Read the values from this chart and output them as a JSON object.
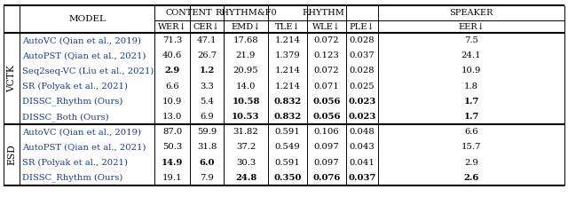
{
  "sections": [
    {
      "label": "VCTK",
      "rows": [
        [
          "AutoVC (Qian et al., 2019)",
          "71.3",
          "47.1",
          "17.68",
          "1.214",
          "0.072",
          "0.028",
          "7.5"
        ],
        [
          "AutoPST (Qian et al., 2021)",
          "40.6",
          "26.7",
          "21.9",
          "1.379",
          "0.123",
          "0.037",
          "24.1"
        ],
        [
          "Seq2seq-VC (Liu et al., 2021)",
          "2.9",
          "1.2",
          "20.95",
          "1.214",
          "0.072",
          "0.028",
          "10.9"
        ],
        [
          "SR (Polyak et al., 2021)",
          "6.6",
          "3.3",
          "14.0",
          "1.214",
          "0.071",
          "0.025",
          "1.8"
        ],
        [
          "DISSC_Rhythm (Ours)",
          "10.9",
          "5.4",
          "10.58",
          "0.832",
          "0.056",
          "0.023",
          "1.7"
        ],
        [
          "DISSC_Both (Ours)",
          "13.0",
          "6.9",
          "10.53",
          "0.832",
          "0.056",
          "0.023",
          "1.7"
        ]
      ],
      "bold": [
        [
          false,
          false,
          false,
          false,
          false,
          false,
          false
        ],
        [
          false,
          false,
          false,
          false,
          false,
          false,
          false
        ],
        [
          true,
          true,
          false,
          false,
          false,
          false,
          false
        ],
        [
          false,
          false,
          false,
          false,
          false,
          false,
          false
        ],
        [
          false,
          false,
          true,
          true,
          true,
          true,
          true
        ],
        [
          false,
          false,
          true,
          true,
          true,
          true,
          true
        ]
      ]
    },
    {
      "label": "ESD",
      "rows": [
        [
          "AutoVC (Qian et al., 2019)",
          "87.0",
          "59.9",
          "31.82",
          "0.591",
          "0.106",
          "0.048",
          "6.6"
        ],
        [
          "AutoPST (Qian et al., 2021)",
          "50.3",
          "31.8",
          "37.2",
          "0.549",
          "0.097",
          "0.043",
          "15.7"
        ],
        [
          "SR (Polyak et al., 2021)",
          "14.9",
          "6.0",
          "30.3",
          "0.591",
          "0.097",
          "0.041",
          "2.9"
        ],
        [
          "DISSC_Rhythm (Ours)",
          "19.1",
          "7.9",
          "24.8",
          "0.350",
          "0.076",
          "0.037",
          "2.6"
        ]
      ],
      "bold": [
        [
          false,
          false,
          false,
          false,
          false,
          false,
          false
        ],
        [
          false,
          false,
          false,
          false,
          false,
          false,
          false
        ],
        [
          true,
          true,
          false,
          false,
          false,
          false,
          false
        ],
        [
          false,
          false,
          true,
          true,
          true,
          true,
          true
        ]
      ]
    }
  ],
  "col_header1": [
    "MODEL",
    "CONTENT",
    "",
    "RHYTHM&F0",
    "RHYTHM",
    "",
    "",
    "SPEAKER"
  ],
  "col_header2": [
    "WER↓",
    "CER↓",
    "EMD↓",
    "TLE↓",
    "WLE↓",
    "PLE↓",
    "EER↓"
  ],
  "bg_color": "#ffffff",
  "font_size": 7.2,
  "text_color": "#1a1a2e",
  "ref_color": "#1a3a8a"
}
